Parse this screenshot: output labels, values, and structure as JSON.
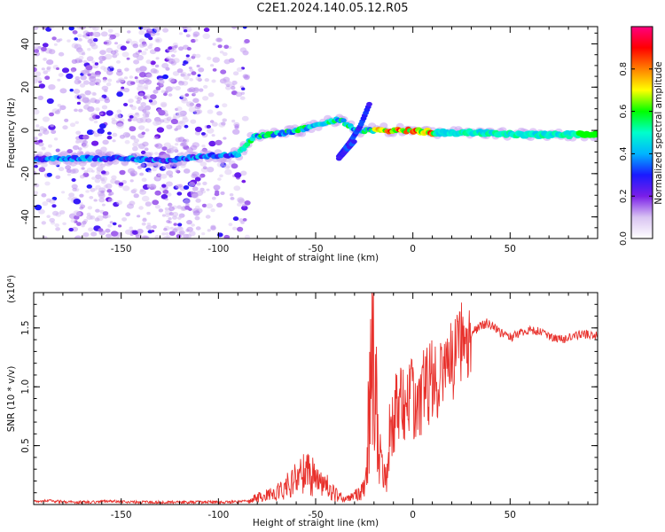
{
  "figure": {
    "title": "C2E1.2024.140.05.12.R05"
  },
  "chart_data": [
    {
      "type": "heatmap",
      "name": "spectrogram",
      "xlabel": "Height of straight line (km)",
      "ylabel": "Frequency (Hz)",
      "xlim": [
        -195,
        95
      ],
      "ylim": [
        -50,
        48
      ],
      "xticks": [
        -150,
        -100,
        -50,
        0,
        50
      ],
      "yticks": [
        -40,
        -20,
        0,
        20,
        40
      ],
      "grid": false,
      "colorbar": {
        "label": "Normalized spectral amplitude",
        "range": [
          0,
          1
        ],
        "ticks": [
          0.0,
          0.2,
          0.4,
          0.6,
          0.8
        ],
        "tick_labels": [
          "0.0",
          "0.2",
          "0.4",
          "0.6",
          "0.8"
        ],
        "colors": [
          "#ffffff",
          "#d9c4f2",
          "#7a1ee8",
          "#1a1aff",
          "#00b4ff",
          "#00ffcc",
          "#00ff00",
          "#ffff00",
          "#ff8000",
          "#ff0000",
          "#ff0080"
        ]
      },
      "ridge": [
        {
          "x": -195,
          "y": -13
        },
        {
          "x": -150,
          "y": -13
        },
        {
          "x": -125,
          "y": -14
        },
        {
          "x": -110,
          "y": -12
        },
        {
          "x": -90,
          "y": -11
        },
        {
          "x": -82,
          "y": -3
        },
        {
          "x": -65,
          "y": -1
        },
        {
          "x": -50,
          "y": 2
        },
        {
          "x": -38,
          "y": 5
        },
        {
          "x": -28,
          "y": 0
        },
        {
          "x": -20,
          "y": 0
        },
        {
          "x": 0,
          "y": 0
        },
        {
          "x": 10,
          "y": -1
        },
        {
          "x": 30,
          "y": -1
        },
        {
          "x": 60,
          "y": -2
        },
        {
          "x": 95,
          "y": -2
        }
      ],
      "branch": [
        {
          "x": -38,
          "y": -12
        },
        {
          "x": -32,
          "y": -5
        },
        {
          "x": -27,
          "y": 2
        },
        {
          "x": -22,
          "y": 13
        }
      ],
      "branch_down": [
        {
          "x": -38,
          "y": -13
        },
        {
          "x": -33,
          "y": -8
        },
        {
          "x": -30,
          "y": -5
        }
      ]
    },
    {
      "type": "line",
      "name": "snr",
      "xlabel": "Height of straight line (km)",
      "ylabel": "SNR (10 * v/v)",
      "y_multiplier_label": "(x10⁴)",
      "xlim": [
        -195,
        95
      ],
      "ylim": [
        0,
        1.8
      ],
      "xticks": [
        -150,
        -100,
        -50,
        0,
        50
      ],
      "yticks": [
        0.5,
        1.0,
        1.5
      ],
      "ytick_labels": [
        "0.5",
        "1.0",
        "1.5"
      ],
      "grid": false,
      "series": [
        {
          "color": "#e8312c",
          "x": [
            -195,
            -185,
            -175,
            -165,
            -155,
            -145,
            -135,
            -125,
            -115,
            -105,
            -95,
            -85,
            -80,
            -75,
            -70,
            -65,
            -60,
            -55,
            -50,
            -47,
            -45,
            -42,
            -40,
            -37,
            -35,
            -32,
            -30,
            -28,
            -26,
            -24,
            -22,
            -21,
            -20,
            -19,
            -18,
            -17,
            -16,
            -15,
            -14,
            -13,
            -12,
            -10,
            -8,
            -5,
            -2,
            0,
            3,
            6,
            10,
            15,
            20,
            25,
            30,
            35,
            38,
            42,
            46,
            50,
            55,
            60,
            65,
            70,
            75,
            80,
            85,
            90,
            95
          ],
          "y": [
            0.03,
            0.03,
            0.02,
            0.02,
            0.03,
            0.02,
            0.02,
            0.02,
            0.02,
            0.02,
            0.02,
            0.03,
            0.08,
            0.1,
            0.15,
            0.2,
            0.28,
            0.36,
            0.3,
            0.25,
            0.22,
            0.16,
            0.12,
            0.08,
            0.05,
            0.07,
            0.1,
            0.12,
            0.14,
            0.25,
            1.4,
            1.6,
            1.8,
            1.5,
            1.0,
            0.6,
            0.4,
            0.35,
            0.3,
            0.3,
            0.55,
            0.78,
            0.82,
            0.85,
            0.92,
            0.88,
            0.9,
            0.98,
            1.05,
            1.12,
            1.2,
            1.38,
            1.45,
            1.52,
            1.54,
            1.5,
            1.45,
            1.42,
            1.45,
            1.48,
            1.47,
            1.43,
            1.4,
            1.42,
            1.44,
            1.45,
            1.44
          ]
        }
      ]
    }
  ]
}
